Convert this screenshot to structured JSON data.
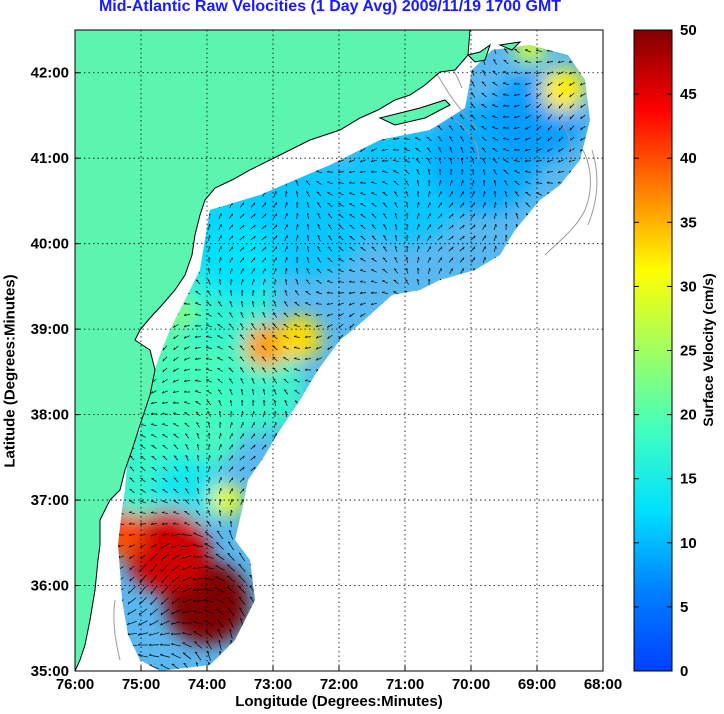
{
  "chart_data": {
    "type": "heatmap",
    "title": "Mid-Atlantic Raw Velocities (1 Day Avg) 2009/11/19 1700 GMT",
    "xlabel": "Longitude (Degrees:Minutes)",
    "ylabel": "Latitude (Degrees:Minutes)",
    "xlim": [
      -76.0,
      -68.0
    ],
    "ylim": [
      35.0,
      42.5
    ],
    "x_ticks": [
      {
        "value": -76,
        "label": "76:00"
      },
      {
        "value": -75,
        "label": "75:00"
      },
      {
        "value": -74,
        "label": "74:00"
      },
      {
        "value": -73,
        "label": "73:00"
      },
      {
        "value": -72,
        "label": "72:00"
      },
      {
        "value": -71,
        "label": "71:00"
      },
      {
        "value": -70,
        "label": "70:00"
      },
      {
        "value": -69,
        "label": "69:00"
      },
      {
        "value": -68,
        "label": "68:00"
      }
    ],
    "y_ticks": [
      {
        "value": 35,
        "label": "35:00"
      },
      {
        "value": 36,
        "label": "36:00"
      },
      {
        "value": 37,
        "label": "37:00"
      },
      {
        "value": 38,
        "label": "38:00"
      },
      {
        "value": 39,
        "label": "39:00"
      },
      {
        "value": 40,
        "label": "40:00"
      },
      {
        "value": 41,
        "label": "41:00"
      },
      {
        "value": 42,
        "label": "42:00"
      }
    ],
    "grid": "dotted",
    "colorbar": {
      "label": "Surface Velocity (cm/s)",
      "min": 0,
      "max": 50,
      "ticks": [
        0,
        5,
        10,
        15,
        20,
        25,
        30,
        35,
        40,
        45,
        50
      ],
      "colormap": "jet",
      "placement": "right"
    },
    "hotspots": [
      {
        "lon": -74.0,
        "lat": 35.8,
        "speed": 50
      },
      {
        "lon": -74.6,
        "lat": 36.4,
        "speed": 46
      },
      {
        "lon": -75.3,
        "lat": 36.6,
        "speed": 40
      },
      {
        "lon": -73.1,
        "lat": 38.8,
        "speed": 36
      },
      {
        "lon": -72.6,
        "lat": 38.9,
        "speed": 33
      },
      {
        "lon": -73.7,
        "lat": 37.0,
        "speed": 30
      },
      {
        "lon": -68.6,
        "lat": 41.8,
        "speed": 32
      },
      {
        "lon": -69.1,
        "lat": 42.3,
        "speed": 28
      },
      {
        "lon": -74.4,
        "lat": 39.2,
        "speed": 23
      }
    ],
    "land_color": "#5cf5b0",
    "no_data_color": "#ffffff"
  },
  "colors": {
    "title": "#1a1aff",
    "land": "#5cf5b0",
    "coast": "#000000",
    "bathymetry": "#999999",
    "grid": "#000000"
  }
}
